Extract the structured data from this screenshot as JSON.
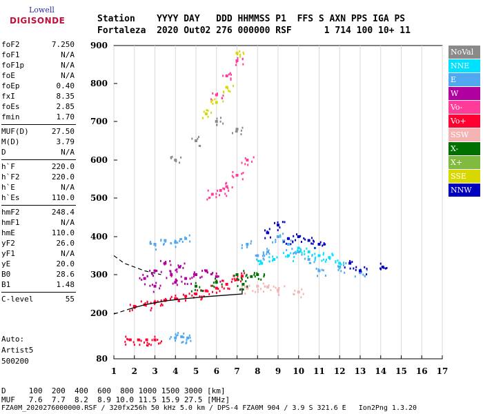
{
  "logo": {
    "line1": "Lowell",
    "line2": "DIGISONDE"
  },
  "header": {
    "line1": "Station    YYYY DAY   DDD HHMMSS P1  FFS S AXN PPS IGA PS",
    "line2": "Fortaleza  2020 Out02 276 000000 RSF      1 714 100 10+ 11"
  },
  "params": [
    {
      "k": "foF2",
      "v": "7.250"
    },
    {
      "k": "foF1",
      "v": "N/A"
    },
    {
      "k": "foF1p",
      "v": "N/A"
    },
    {
      "k": "foE",
      "v": "N/A"
    },
    {
      "k": "foEp",
      "v": "0.40"
    },
    {
      "k": "fxI",
      "v": "8.35"
    },
    {
      "k": "foEs",
      "v": "2.85"
    },
    {
      "k": "fmin",
      "v": "1.70"
    },
    {
      "k": "MUF(D)",
      "v": "27.50"
    },
    {
      "k": "M(D)",
      "v": "3.79"
    },
    {
      "k": "D",
      "v": "N/A"
    },
    {
      "k": "h`F",
      "v": "220.0"
    },
    {
      "k": "h`F2",
      "v": "220.0"
    },
    {
      "k": "h`E",
      "v": "N/A"
    },
    {
      "k": "h`Es",
      "v": "110.0"
    },
    {
      "k": "hmF2",
      "v": "248.4"
    },
    {
      "k": "hmF1",
      "v": "N/A"
    },
    {
      "k": "hmE",
      "v": "110.0"
    },
    {
      "k": "yF2",
      "v": "26.0"
    },
    {
      "k": "yF1",
      "v": "N/A"
    },
    {
      "k": "yE",
      "v": "20.0"
    },
    {
      "k": "B0",
      "v": "28.6"
    },
    {
      "k": "B1",
      "v": "1.48"
    },
    {
      "k": "C-level",
      "v": "55"
    }
  ],
  "auto": {
    "l1": "Auto:",
    "l2": "Artist5",
    "l3": "500200"
  },
  "legend": [
    {
      "label": "NoVal",
      "color": "#8a8a8a"
    },
    {
      "label": "NNE",
      "color": "#00e0ff"
    },
    {
      "label": "E",
      "color": "#50a8f0"
    },
    {
      "label": "W",
      "color": "#b000a0"
    },
    {
      "label": "Vo-",
      "color": "#ff3c9a"
    },
    {
      "label": "Vo+",
      "color": "#ff0030"
    },
    {
      "label": "SSW",
      "color": "#f4b4b4"
    },
    {
      "label": "X-",
      "color": "#007000"
    },
    {
      "label": "X+",
      "color": "#80bb40"
    },
    {
      "label": "SSE",
      "color": "#d8d800"
    },
    {
      "label": "NNW",
      "color": "#0000c0"
    }
  ],
  "bottom": {
    "l1": "D     100  200  400  600  800 1000 1500 3000 [km]",
    "l2": "MUF   7.6  7.7  8.2  8.9 10.0 11.5 15.9 27.5 [MHz]"
  },
  "footer": "FZA0M_2020276000000.RSF / 320fx256h 50 kHz 5.0 km / DPS-4 FZA0M 904 / 3.9 S 321.6 E   Ion2Png 1.3.20",
  "chart_data": {
    "type": "scatter",
    "xlim": [
      1,
      17
    ],
    "ylim": [
      80,
      900
    ],
    "x_ticks": [
      1,
      2,
      3,
      4,
      5,
      6,
      7,
      8,
      9,
      10,
      11,
      12,
      13,
      14,
      15,
      16,
      17
    ],
    "y_ticks": [
      80,
      200,
      300,
      400,
      500,
      600,
      700,
      800,
      900
    ],
    "grid": "vertical",
    "legend_position": "right",
    "profile_curve": [
      [
        1.7,
        210
      ],
      [
        2.5,
        222
      ],
      [
        3.5,
        232
      ],
      [
        4.5,
        238
      ],
      [
        5.5,
        243
      ],
      [
        6.5,
        247
      ],
      [
        7.25,
        250
      ],
      [
        7.25,
        265
      ]
    ],
    "profile_dashed_low": [
      [
        1.0,
        198
      ],
      [
        1.7,
        210
      ]
    ],
    "profile_dashed_high": [
      [
        1.0,
        350
      ],
      [
        1.5,
        330
      ],
      [
        2.5,
        310
      ],
      [
        3.3,
        300
      ]
    ],
    "traces": [
      {
        "name": "Vo+",
        "points": [
          [
            2.0,
            218
          ],
          [
            2.5,
            222
          ],
          [
            3.0,
            228
          ],
          [
            3.5,
            233
          ],
          [
            4.0,
            238
          ],
          [
            4.5,
            244
          ],
          [
            5.0,
            250
          ],
          [
            5.5,
            258
          ],
          [
            6.0,
            265
          ],
          [
            6.5,
            275
          ],
          [
            7.0,
            287
          ],
          [
            7.25,
            296
          ],
          [
            1.8,
            130
          ],
          [
            2.2,
            130
          ],
          [
            2.6,
            130
          ],
          [
            3.0,
            130
          ]
        ]
      },
      {
        "name": "W",
        "points": [
          [
            2.5,
            290
          ],
          [
            3.0,
            310
          ],
          [
            3.5,
            330
          ],
          [
            3.8,
            300
          ],
          [
            4.2,
            320
          ],
          [
            4.5,
            290
          ],
          [
            5.0,
            300
          ],
          [
            5.5,
            310
          ],
          [
            6.0,
            295
          ],
          [
            3.0,
            270
          ],
          [
            4.0,
            280
          ]
        ]
      },
      {
        "name": "E",
        "points": [
          [
            4.0,
            135
          ],
          [
            4.3,
            138
          ],
          [
            4.6,
            135
          ],
          [
            3.0,
            380
          ],
          [
            3.5,
            390
          ],
          [
            4.0,
            385
          ],
          [
            4.5,
            395
          ],
          [
            7.5,
            380
          ],
          [
            8.0,
            350
          ],
          [
            8.5,
            360
          ],
          [
            9.0,
            400
          ],
          [
            9.5,
            380
          ],
          [
            10.0,
            360
          ],
          [
            10.5,
            340
          ],
          [
            11.0,
            310
          ],
          [
            12.0,
            320
          ],
          [
            13.0,
            305
          ]
        ]
      },
      {
        "name": "NNE",
        "points": [
          [
            8.2,
            330
          ],
          [
            8.8,
            340
          ],
          [
            9.5,
            350
          ],
          [
            10.0,
            370
          ],
          [
            10.5,
            360
          ],
          [
            11.0,
            350
          ],
          [
            11.5,
            345
          ],
          [
            12.0,
            330
          ]
        ]
      },
      {
        "name": "NNW",
        "points": [
          [
            8.5,
            410
          ],
          [
            9.0,
            430
          ],
          [
            9.5,
            395
          ],
          [
            10.0,
            400
          ],
          [
            10.5,
            390
          ],
          [
            11.0,
            380
          ],
          [
            12.5,
            330
          ],
          [
            13.0,
            310
          ],
          [
            14.1,
            320
          ]
        ]
      },
      {
        "name": "SSW",
        "points": [
          [
            7.5,
            265
          ],
          [
            8.0,
            270
          ],
          [
            8.5,
            268
          ],
          [
            9.0,
            260
          ],
          [
            10.0,
            255
          ]
        ]
      },
      {
        "name": "X-",
        "points": [
          [
            5.0,
            270
          ],
          [
            6.0,
            280
          ],
          [
            7.0,
            300
          ],
          [
            7.3,
            275
          ],
          [
            7.7,
            295
          ],
          [
            8.0,
            300
          ]
        ]
      },
      {
        "name": "Vo-",
        "points": [
          [
            5.8,
            510
          ],
          [
            6.2,
            520
          ],
          [
            6.5,
            530
          ],
          [
            7.0,
            560
          ],
          [
            7.5,
            600
          ],
          [
            6.0,
            770
          ],
          [
            6.5,
            820
          ],
          [
            7.0,
            860
          ]
        ]
      },
      {
        "name": "SSE",
        "points": [
          [
            5.5,
            720
          ],
          [
            6.0,
            750
          ],
          [
            6.5,
            790
          ],
          [
            7.0,
            880
          ]
        ]
      },
      {
        "name": "NoVal",
        "points": [
          [
            4.0,
            600
          ],
          [
            5.0,
            650
          ],
          [
            6.0,
            700
          ],
          [
            7.0,
            680
          ]
        ]
      }
    ]
  }
}
